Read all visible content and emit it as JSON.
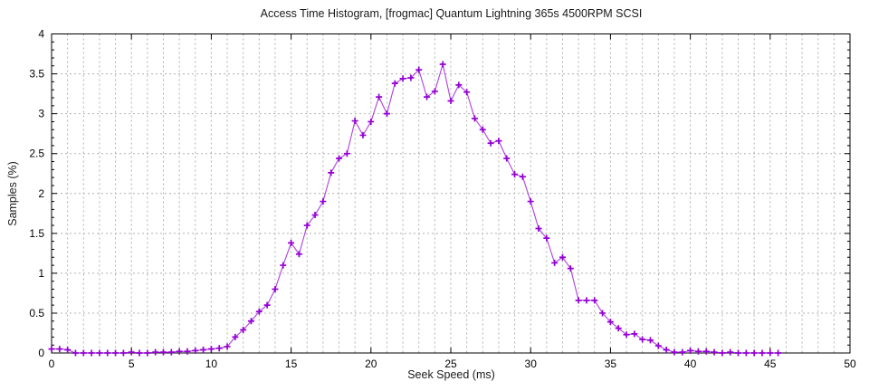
{
  "title": "Access Time Histogram, [frogmac] Quantum Lightning 365s 4500RPM SCSI",
  "chart_data": {
    "type": "line",
    "title": "Access Time Histogram, [frogmac] Quantum Lightning 365s 4500RPM SCSI",
    "xlabel": "Seek Speed (ms)",
    "ylabel": "Samples (%)",
    "xlim": [
      0,
      50
    ],
    "ylim": [
      0,
      4
    ],
    "grid": true,
    "legend_position": "none",
    "x_tick_values": [
      0,
      5,
      10,
      15,
      20,
      25,
      30,
      35,
      40,
      45,
      50
    ],
    "x_tick_labels": [
      "0",
      "5",
      "10",
      "15",
      "20",
      "25",
      "30",
      "35",
      "40",
      "45",
      "50"
    ],
    "y_tick_values": [
      0,
      0.5,
      1,
      1.5,
      2,
      2.5,
      3,
      3.5,
      4
    ],
    "y_tick_labels": [
      "0",
      "0.5",
      "1",
      "1.5",
      "2",
      "2.5",
      "3",
      "3.5",
      "4"
    ],
    "x_minor_grid_step": 1,
    "y_minor_tick_step": 0.1,
    "grid_color": "#b0b0b0",
    "series": [
      {
        "name": "samples",
        "color": "#9400d3",
        "marker": "plus",
        "x": [
          0,
          0.5,
          1,
          1.5,
          2,
          2.5,
          3,
          3.5,
          4,
          4.5,
          5,
          5.5,
          6,
          6.5,
          7,
          7.5,
          8,
          8.5,
          9,
          9.5,
          10,
          10.5,
          11,
          11.5,
          12,
          12.5,
          13,
          13.5,
          14,
          14.5,
          15,
          15.5,
          16,
          16.5,
          17,
          17.5,
          18,
          18.5,
          19,
          19.5,
          20,
          20.5,
          21,
          21.5,
          22,
          22.5,
          23,
          23.5,
          24,
          24.5,
          25,
          25.5,
          26,
          26.5,
          27,
          27.5,
          28,
          28.5,
          29,
          29.5,
          30,
          30.5,
          31,
          31.5,
          32,
          32.5,
          33,
          33.5,
          34,
          34.5,
          35,
          35.5,
          36,
          36.5,
          37,
          37.5,
          38,
          38.5,
          39,
          39.5,
          40,
          40.5,
          41,
          41.5,
          42,
          42.5,
          43,
          43.5,
          44,
          44.5,
          45,
          45.5
        ],
        "y": [
          0.05,
          0.05,
          0.04,
          0.0,
          0.0,
          0.0,
          0.0,
          0.0,
          0.0,
          0.0,
          0.01,
          0.0,
          0.0,
          0.01,
          0.01,
          0.01,
          0.02,
          0.02,
          0.03,
          0.04,
          0.05,
          0.06,
          0.08,
          0.2,
          0.29,
          0.4,
          0.52,
          0.6,
          0.8,
          1.1,
          1.38,
          1.24,
          1.6,
          1.73,
          1.9,
          2.26,
          2.44,
          2.5,
          2.91,
          2.73,
          2.9,
          3.21,
          3.0,
          3.38,
          3.44,
          3.45,
          3.55,
          3.21,
          3.28,
          3.62,
          3.16,
          3.36,
          3.27,
          2.94,
          2.8,
          2.63,
          2.66,
          2.44,
          2.24,
          2.21,
          1.9,
          1.56,
          1.44,
          1.13,
          1.2,
          1.06,
          0.66,
          0.66,
          0.66,
          0.5,
          0.39,
          0.31,
          0.23,
          0.24,
          0.17,
          0.16,
          0.09,
          0.04,
          0.01,
          0.01,
          0.03,
          0.02,
          0.02,
          0.01,
          0.0,
          0.01,
          0.0,
          0.0,
          0.0,
          0.0,
          0.0,
          0.0
        ]
      }
    ]
  }
}
